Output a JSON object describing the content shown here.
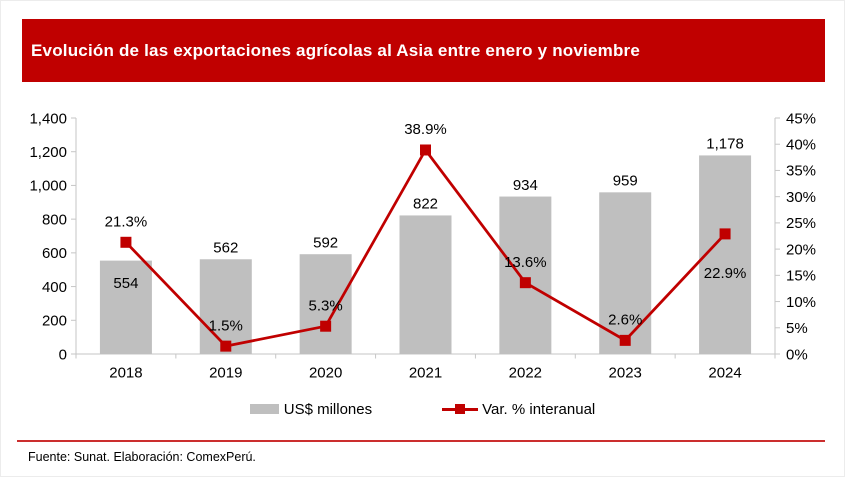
{
  "header": {
    "title": "Evolución de las exportaciones agrícolas al Asia entre enero y noviembre"
  },
  "colors": {
    "banner_red": "#C00000",
    "bar_gray": "#BFBFBF",
    "line_red": "#C00000",
    "axis_gray": "#C6C6C6",
    "footer_rule_red": "#C00000"
  },
  "chart_data": {
    "type": "combo_bar_line",
    "title": "Evolución de las exportaciones agrícolas al Asia entre enero y noviembre",
    "categories": [
      "2018",
      "2019",
      "2020",
      "2021",
      "2022",
      "2023",
      "2024"
    ],
    "series": [
      {
        "name": "US$ millones",
        "type": "bar",
        "axis": "left",
        "values": [
          554,
          562,
          592,
          822,
          934,
          959,
          1178
        ],
        "labels": [
          "554",
          "562",
          "592",
          "822",
          "934",
          "959",
          "1,178"
        ],
        "label_pos": [
          "inside",
          "above",
          "above",
          "above",
          "above",
          "above",
          "above"
        ],
        "color": "#BFBFBF"
      },
      {
        "name": "Var. % interanual",
        "type": "line",
        "axis": "right",
        "values": [
          21.3,
          1.5,
          5.3,
          38.9,
          13.6,
          2.6,
          22.9
        ],
        "labels": [
          "21.3%",
          "1.5%",
          "5.3%",
          "38.9%",
          "13.6%",
          "2.6%",
          "22.9%"
        ],
        "label_pos": [
          "above",
          "above",
          "above",
          "above",
          "above",
          "above",
          "below"
        ],
        "color": "#C00000",
        "marker": "square"
      }
    ],
    "left_axis": {
      "min": 0,
      "max": 1400,
      "step": 200,
      "tick_labels": [
        "0",
        "200",
        "400",
        "600",
        "800",
        "1,000",
        "1,200",
        "1,400"
      ]
    },
    "right_axis": {
      "min": 0,
      "max": 45,
      "step": 5,
      "tick_labels": [
        "0%",
        "5%",
        "10%",
        "15%",
        "20%",
        "25%",
        "30%",
        "35%",
        "40%",
        "45%"
      ]
    },
    "grid": false,
    "legend_position": "bottom"
  },
  "footer": {
    "source": "Fuente: Sunat. Elaboración: ComexPerú."
  }
}
